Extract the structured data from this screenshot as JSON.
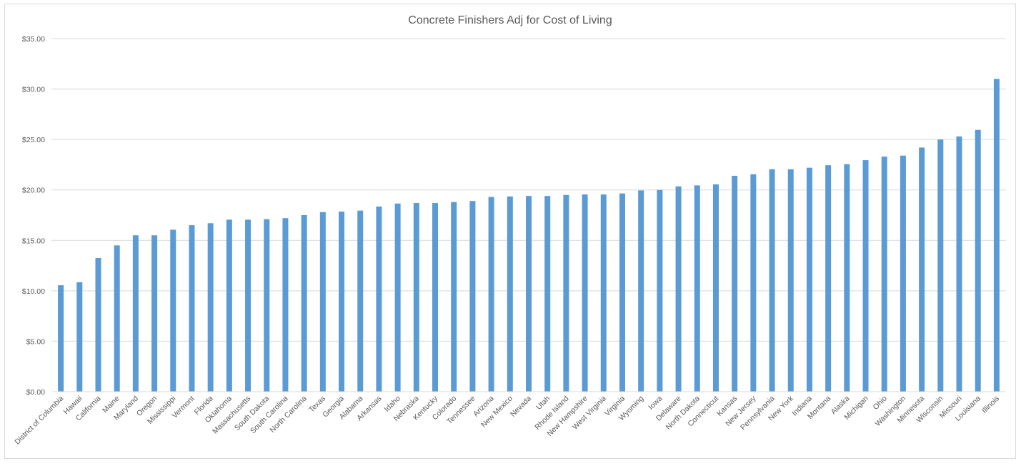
{
  "chart_data": {
    "type": "bar",
    "title": "Concrete Finishers Adj for Cost of Living",
    "xlabel": "",
    "ylabel": "",
    "ylim": [
      0,
      35
    ],
    "y_ticks": [
      "$0.00",
      "$5.00",
      "$10.00",
      "$15.00",
      "$20.00",
      "$25.00",
      "$30.00",
      "$35.00"
    ],
    "y_tick_values": [
      0,
      5,
      10,
      15,
      20,
      25,
      30,
      35
    ],
    "grid": true,
    "legend": "none",
    "bar_color": "#5b9bd5",
    "categories": [
      "District of Columbia",
      "Hawaii",
      "California",
      "Maine",
      "Maryland",
      "Oregon",
      "Mississippi",
      "Vermont",
      "Florida",
      "Oklahoma",
      "Massachusetts",
      "South Dakota",
      "South Carolina",
      "North Carolina",
      "Texas",
      "Georgia",
      "Alabama",
      "Arkansas",
      "Idaho",
      "Nebraska",
      "Kentucky",
      "Colorado",
      "Tennessee",
      "Arizona",
      "New Mexico",
      "Nevada",
      "Utah",
      "Rhode Island",
      "New Hampshire",
      "West Virginia",
      "Virginia",
      "Wyoming",
      "Iowa",
      "Delaware",
      "North Dakota",
      "Connecticut",
      "Kansas",
      "New Jersey",
      "Pennsylvania",
      "New York",
      "Indiana",
      "Montana",
      "Alaska",
      "Michigan",
      "Ohio",
      "Washington",
      "Minnesota",
      "Wisconsin",
      "Missouri",
      "Louisiana",
      "Illinois"
    ],
    "values": [
      10.55,
      10.85,
      13.25,
      14.5,
      15.5,
      15.5,
      16.05,
      16.5,
      16.7,
      17.05,
      17.05,
      17.1,
      17.2,
      17.5,
      17.8,
      17.85,
      17.95,
      18.35,
      18.65,
      18.7,
      18.7,
      18.8,
      18.9,
      19.3,
      19.35,
      19.4,
      19.4,
      19.5,
      19.55,
      19.55,
      19.65,
      19.95,
      20.0,
      20.35,
      20.45,
      20.55,
      21.4,
      21.55,
      22.05,
      22.05,
      22.2,
      22.45,
      22.55,
      22.95,
      23.3,
      23.4,
      24.2,
      25.0,
      25.3,
      25.95,
      31.0
    ]
  }
}
